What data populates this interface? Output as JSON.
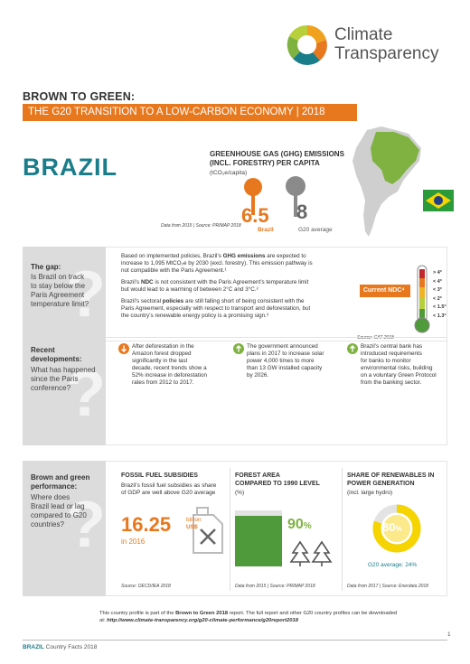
{
  "header": {
    "logo_line1": "Climate",
    "logo_line2": "Transparency",
    "report_title": "BROWN TO GREEN:",
    "report_subtitle": "THE G20 TRANSITION TO A LOW-CARBON ECONOMY | 2018",
    "country": "BRAZIL"
  },
  "ghg": {
    "title_line1": "GREENHOUSE GAS (GHG) EMISSIONS",
    "title_line2": "(INCL. FORESTRY) PER CAPITA",
    "unit": "(tCO₂e/capita)",
    "brazil_value": "6.5",
    "brazil_label": "Brazil",
    "g20_value": "8",
    "g20_label": "G20 average",
    "source": "Data from 2015 | Source: PRIMAP 2018"
  },
  "gap": {
    "side_title": "The gap:",
    "side_q1": "Is Brazil on track",
    "side_q2": "to stay below the",
    "side_q3": "Paris Agreement",
    "side_q4": "temperature limit?",
    "p1a": "Based on implemented policies, Brazil’s ",
    "p1b": "GHG emissions",
    "p1c": " are expected to",
    "p1d": "increase to 1,095 MtCO₂e by 2030 (excl. forestry). This emission pathway is",
    "p1e": "not compatible with the Paris Agreement.¹",
    "p2a": "Brazil’s ",
    "p2b": "NDC",
    "p2c": " is not consistent with the Paris Agreement’s temperature limit",
    "p2d": "but would lead to a warming of between 2°C and 3°C.²",
    "p3a": "Brazil’s sectoral ",
    "p3b": "policies",
    "p3c": " are still falling short of being consistent with the",
    "p3d": "Paris Agreement, especially with respect to transport and deforestation, but",
    "p3e": "the country’s renewable energy policy is a promising sign.³",
    "ndc_label": "Current NDC⁴",
    "temps": [
      "> 4°",
      "< 4°",
      "< 3°",
      "< 2°",
      "< 1.5°",
      "< 1.3°"
    ],
    "source": "Source: CAT 2018"
  },
  "recent": {
    "side_title1": "Recent",
    "side_title2": "developments:",
    "side_q1": "What has happened",
    "side_q2": "since the Paris",
    "side_q3": "conference?",
    "item1": [
      "After deforestation in the",
      "Amazon forest dropped",
      "significantly in the last",
      "decade, recent trends show a",
      "52% increase in deforestation",
      "rates from 2012 to 2017."
    ],
    "item2": [
      "The government announced",
      "plans in 2017 to increase solar",
      "power 4,000 times to more",
      "than 13 GW installed capacity",
      "by 2026."
    ],
    "item3": [
      "Brazil’s central bank has",
      "introduced requirements",
      "for banks to monitor",
      "environmental risks, building",
      "on a voluntary Green Protocol",
      "from the banking sector."
    ]
  },
  "performance": {
    "side_title1": "Brown and green",
    "side_title2": "performance:",
    "side_q1": "Where does",
    "side_q2": "Brazil lead or lag",
    "side_q3": "compared to G20",
    "side_q4": "countries?",
    "fossil_title": "FOSSIL FUEL SUBSIDIES",
    "fossil_sub1": "Brazil’s fossil fuel subsidies as share",
    "fossil_sub2": "of GDP are well above G20 average",
    "fossil_value": "16.25",
    "fossil_unit1": "billion",
    "fossil_unit2": "US$",
    "fossil_year": "in 2016",
    "fossil_source": "Source: OECD/IEA 2018",
    "forest_title1": "FOREST AREA",
    "forest_title2": "COMPARED TO 1990 LEVEL",
    "forest_unit": "(%)",
    "forest_value": "90",
    "forest_pct": "%",
    "forest_level": 0.9,
    "forest_source": "Data from 2015 | Source: PRIMAP 2018",
    "ren_title1": "SHARE OF RENEWABLES IN",
    "ren_title2": "POWER GENERATION",
    "ren_sub": "(incl. large hydro)",
    "ren_value": "80",
    "ren_pct": "%",
    "ren_share": 0.8,
    "ren_g20": "G20 average: 24%",
    "ren_source": "Data from 2017 | Source: Enerdata 2018"
  },
  "footer": {
    "note_a": "This country profile is part of the ",
    "note_b": "Brown to Green 2018",
    "note_c": " report. The full report and other G20 country profiles can be downloaded",
    "note_d": "at: ",
    "note_e": "http://www.climate-transparency.org/g20-climate-performance/g20report2018",
    "left_country": "BRAZIL",
    "left_rest": " Country Facts 2018",
    "page": "1"
  }
}
